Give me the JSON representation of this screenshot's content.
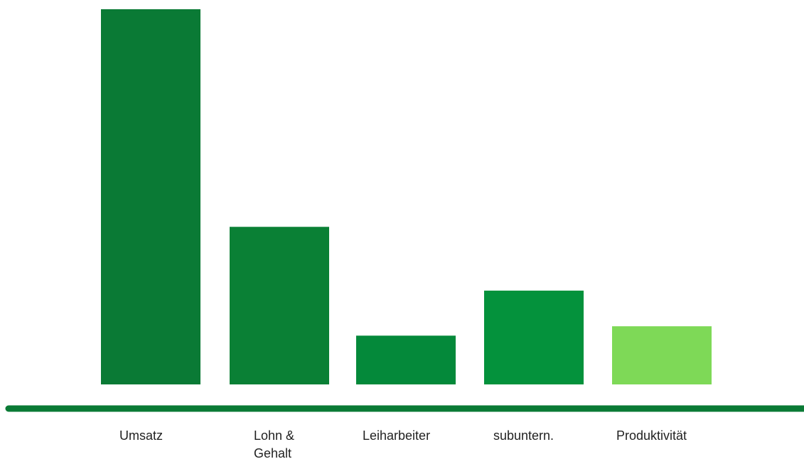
{
  "chart_data": {
    "type": "bar",
    "categories": [
      "Umsatz",
      "Lohn & Gehalt",
      "Leiharbeiter",
      "subuntern.",
      "Produktivität"
    ],
    "category_lines": [
      [
        "Umsatz"
      ],
      [
        "Lohn &",
        "Gehalt"
      ],
      [
        "Leiharbeiter"
      ],
      [
        "subuntern."
      ],
      [
        "Produktivität"
      ]
    ],
    "values": [
      100,
      42,
      13,
      25,
      15.5
    ],
    "colors": [
      "#0a7a35",
      "#0a8035",
      "#04893a",
      "#04923c",
      "#7ed957"
    ],
    "axis_color": "#0a7a35",
    "ylim": [
      0,
      100
    ],
    "grid": false,
    "legend": "none",
    "title": "",
    "xlabel": "",
    "ylabel": ""
  }
}
